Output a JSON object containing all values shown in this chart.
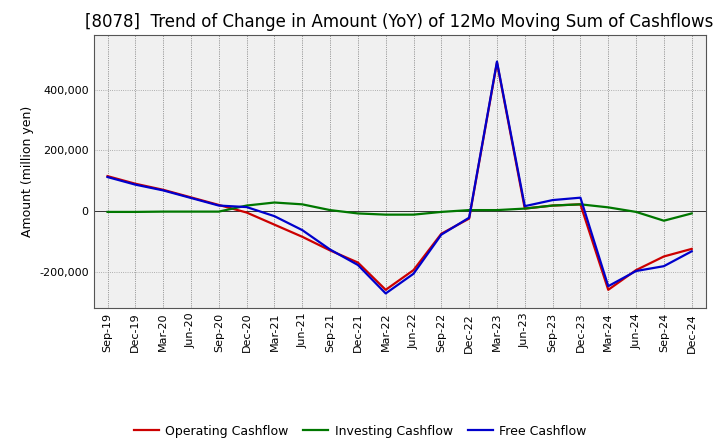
{
  "title": "[8078]  Trend of Change in Amount (YoY) of 12Mo Moving Sum of Cashflows",
  "ylabel": "Amount (million yen)",
  "x_labels": [
    "Sep-19",
    "Dec-19",
    "Mar-20",
    "Jun-20",
    "Sep-20",
    "Dec-20",
    "Mar-21",
    "Jun-21",
    "Sep-21",
    "Dec-21",
    "Mar-22",
    "Jun-22",
    "Sep-22",
    "Dec-22",
    "Mar-23",
    "Jun-23",
    "Sep-23",
    "Dec-23",
    "Mar-24",
    "Jun-24",
    "Sep-24",
    "Dec-24"
  ],
  "operating": [
    115000,
    90000,
    70000,
    45000,
    20000,
    -5000,
    -45000,
    -85000,
    -130000,
    -170000,
    -260000,
    -195000,
    -75000,
    -25000,
    490000,
    8000,
    18000,
    22000,
    -260000,
    -195000,
    -150000,
    -125000
  ],
  "investing": [
    -3000,
    -3000,
    -2000,
    -2000,
    -2000,
    18000,
    28000,
    22000,
    3000,
    -8000,
    -12000,
    -12000,
    -3000,
    3000,
    3000,
    8000,
    18000,
    22000,
    12000,
    -3000,
    -32000,
    -8000
  ],
  "free": [
    112000,
    87000,
    68000,
    43000,
    18000,
    13000,
    -17000,
    -63000,
    -127000,
    -178000,
    -272000,
    -207000,
    -78000,
    -22000,
    493000,
    16000,
    36000,
    44000,
    -248000,
    -198000,
    -182000,
    -133000
  ],
  "operating_color": "#cc0000",
  "investing_color": "#007700",
  "free_color": "#0000cc",
  "plot_bg_color": "#f0f0f0",
  "fig_bg_color": "#ffffff",
  "grid_color": "#999999",
  "ylim": [
    -320000,
    580000
  ],
  "yticks": [
    -200000,
    0,
    200000,
    400000
  ],
  "title_fontsize": 12,
  "axis_label_fontsize": 9,
  "tick_fontsize": 8,
  "legend_fontsize": 9,
  "linewidth": 1.6
}
